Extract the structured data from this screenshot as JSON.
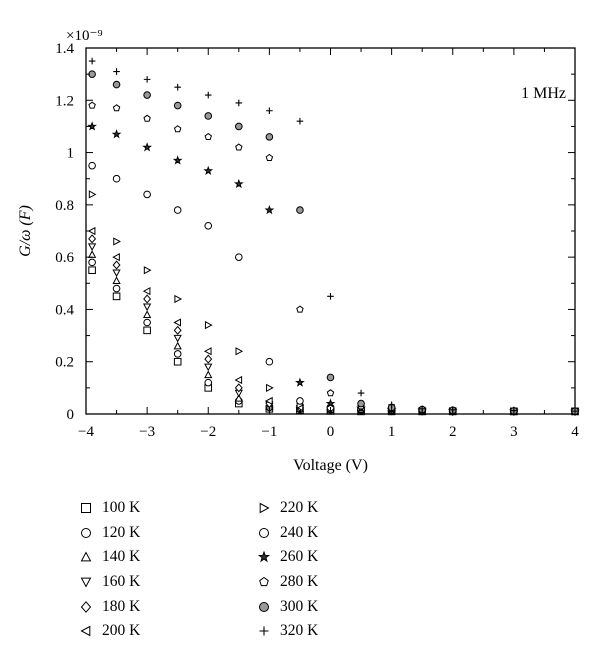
{
  "chart_data": {
    "type": "scatter",
    "title": "",
    "annotation": "1 MHz",
    "xlabel": "Voltage (V)",
    "ylabel": "G/ω (F)",
    "y_multiplier": "×10⁻⁹",
    "xlim": [
      -4,
      4
    ],
    "ylim": [
      0,
      1.4
    ],
    "x_ticks": [
      -4,
      -3,
      -2,
      -1,
      0,
      1,
      2,
      3,
      4
    ],
    "x_tick_labels": [
      "−4",
      "−3",
      "−2",
      "−1",
      "0",
      "1",
      "2",
      "3",
      "4"
    ],
    "y_ticks": [
      0,
      0.2,
      0.4,
      0.6,
      0.8,
      1,
      1.2,
      1.4
    ],
    "y_tick_labels": [
      "0",
      "0.2",
      "0.4",
      "0.6",
      "0.8",
      "1",
      "1.2",
      "1.4"
    ],
    "grid": false,
    "legend_position": "bottom",
    "x": [
      -3.9,
      -3.5,
      -3.0,
      -2.5,
      -2.0,
      -1.5,
      -1.0,
      -0.5,
      0.0,
      0.5,
      1.0,
      1.5,
      2.0,
      3.0,
      4.0
    ],
    "series": [
      {
        "name": "100 K",
        "marker": "square",
        "values": [
          0.55,
          0.45,
          0.32,
          0.2,
          0.1,
          0.04,
          0.02,
          0.015,
          0.012,
          0.01,
          0.01,
          0.01,
          0.01,
          0.01,
          0.01
        ]
      },
      {
        "name": "120 K",
        "marker": "circle",
        "values": [
          0.58,
          0.48,
          0.35,
          0.23,
          0.12,
          0.05,
          0.025,
          0.018,
          0.014,
          0.012,
          0.011,
          0.01,
          0.01,
          0.01,
          0.01
        ]
      },
      {
        "name": "140 K",
        "marker": "triangle-up",
        "values": [
          0.61,
          0.51,
          0.38,
          0.26,
          0.15,
          0.06,
          0.03,
          0.02,
          0.015,
          0.012,
          0.011,
          0.01,
          0.01,
          0.01,
          0.01
        ]
      },
      {
        "name": "160 K",
        "marker": "triangle-down",
        "values": [
          0.64,
          0.54,
          0.41,
          0.29,
          0.18,
          0.08,
          0.035,
          0.022,
          0.016,
          0.013,
          0.012,
          0.011,
          0.01,
          0.01,
          0.01
        ]
      },
      {
        "name": "180 K",
        "marker": "diamond",
        "values": [
          0.67,
          0.57,
          0.44,
          0.32,
          0.21,
          0.1,
          0.04,
          0.024,
          0.017,
          0.014,
          0.012,
          0.011,
          0.01,
          0.01,
          0.01
        ]
      },
      {
        "name": "200 K",
        "marker": "triangle-left",
        "values": [
          0.7,
          0.6,
          0.47,
          0.35,
          0.24,
          0.13,
          0.05,
          0.026,
          0.018,
          0.015,
          0.013,
          0.012,
          0.011,
          0.01,
          0.01
        ]
      },
      {
        "name": "220 K",
        "marker": "triangle-right",
        "values": [
          0.84,
          0.66,
          0.55,
          0.44,
          0.34,
          0.24,
          0.1,
          0.035,
          0.02,
          0.016,
          0.014,
          0.012,
          0.011,
          0.01,
          0.01
        ]
      },
      {
        "name": "240 K",
        "marker": "circle",
        "values": [
          0.95,
          0.9,
          0.84,
          0.78,
          0.72,
          0.6,
          0.2,
          0.05,
          0.025,
          0.018,
          0.015,
          0.013,
          0.012,
          0.011,
          0.01
        ]
      },
      {
        "name": "260 K",
        "marker": "star",
        "values": [
          1.1,
          1.07,
          1.02,
          0.97,
          0.93,
          0.88,
          0.78,
          0.12,
          0.04,
          0.022,
          0.017,
          0.014,
          0.012,
          0.011,
          0.01
        ]
      },
      {
        "name": "280 K",
        "marker": "pentagon",
        "values": [
          1.18,
          1.17,
          1.13,
          1.09,
          1.06,
          1.02,
          0.98,
          0.4,
          0.08,
          0.03,
          0.02,
          0.015,
          0.013,
          0.011,
          0.01
        ]
      },
      {
        "name": "300 K",
        "marker": "circle-filled",
        "values": [
          1.3,
          1.26,
          1.22,
          1.18,
          1.14,
          1.1,
          1.06,
          0.78,
          0.14,
          0.04,
          0.025,
          0.017,
          0.014,
          0.012,
          0.011
        ]
      },
      {
        "name": "320 K",
        "marker": "plus",
        "values": [
          1.35,
          1.31,
          1.28,
          1.25,
          1.22,
          1.19,
          1.16,
          1.12,
          0.45,
          0.08,
          0.035,
          0.02,
          0.016,
          0.013,
          0.011
        ]
      }
    ]
  }
}
